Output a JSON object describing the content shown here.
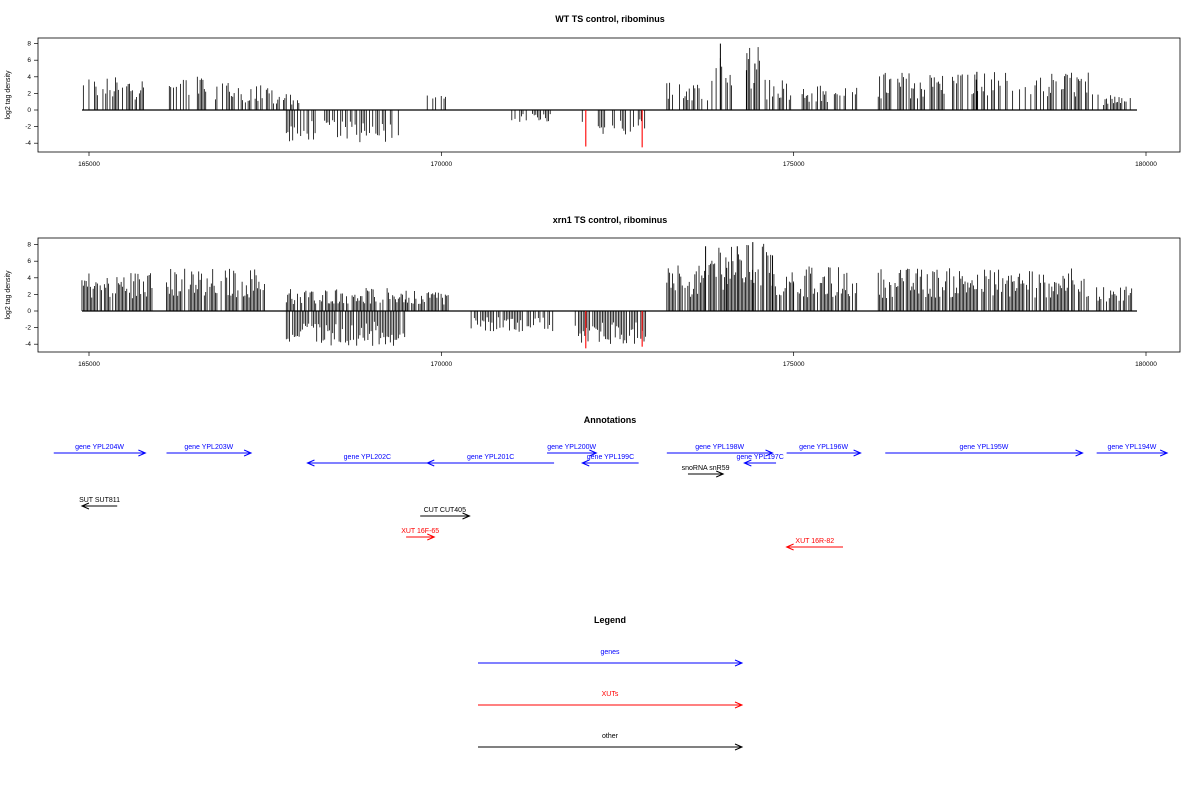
{
  "chart_data": [
    {
      "type": "bar",
      "title": "WT TS control, ribominus",
      "xlabel": "",
      "ylabel": "log2 tag density",
      "xlim": [
        164800,
        179800
      ],
      "ylim": [
        -5,
        9
      ],
      "xticks": [
        165000,
        170000,
        175000,
        180000
      ],
      "yticks": [
        -4,
        -2,
        0,
        2,
        4,
        6,
        8
      ],
      "grid": false,
      "colors": {
        "plus": "#000000",
        "minus": "#000000",
        "highlight": "#ff0000"
      },
      "plus_segments": [
        {
          "start": 164900,
          "end": 165800,
          "max": 4
        },
        {
          "start": 166100,
          "end": 167000,
          "max": 4.2
        },
        {
          "start": 167000,
          "end": 167600,
          "max": 3
        },
        {
          "start": 167600,
          "end": 168000,
          "max": 2
        },
        {
          "start": 169800,
          "end": 170100,
          "max": 1.8
        },
        {
          "start": 173200,
          "end": 173800,
          "max": 3.5
        },
        {
          "start": 173800,
          "end": 174600,
          "max": 8
        },
        {
          "start": 174600,
          "end": 175000,
          "max": 4
        },
        {
          "start": 175100,
          "end": 175900,
          "max": 3
        },
        {
          "start": 176200,
          "end": 179200,
          "max": 4.6
        },
        {
          "start": 179200,
          "end": 179800,
          "max": 2
        }
      ],
      "minus_segments": [
        {
          "start": 167800,
          "end": 169400,
          "min": -4
        },
        {
          "start": 171000,
          "end": 171600,
          "min": -1.5
        },
        {
          "start": 172000,
          "end": 172900,
          "min": -3
        }
      ],
      "highlight_marks": [
        {
          "x": 172050,
          "y": -4.4
        },
        {
          "x": 172850,
          "y": -4.5
        }
      ],
      "peaks": [
        {
          "x": 173960,
          "y": 8
        },
        {
          "x": 174330,
          "y": 4.8
        },
        {
          "x": 174450,
          "y": 5.6
        },
        {
          "x": 177600,
          "y": 4.6
        }
      ]
    },
    {
      "type": "bar",
      "title": "xrn1 TS control, ribominus",
      "xlabel": "",
      "ylabel": "log2 tag density",
      "xlim": [
        164800,
        179800
      ],
      "ylim": [
        -5,
        9
      ],
      "xticks": [
        165000,
        170000,
        175000,
        180000
      ],
      "yticks": [
        -4,
        -2,
        0,
        2,
        4,
        6,
        8
      ],
      "grid": false,
      "colors": {
        "plus": "#000000",
        "minus": "#000000",
        "highlight": "#ff0000"
      },
      "plus_segments": [
        {
          "start": 164900,
          "end": 165900,
          "max": 4.8
        },
        {
          "start": 166100,
          "end": 167500,
          "max": 5.2
        },
        {
          "start": 167800,
          "end": 169500,
          "max": 2.8
        },
        {
          "start": 169500,
          "end": 170100,
          "max": 2.5
        },
        {
          "start": 173200,
          "end": 173800,
          "max": 5.5
        },
        {
          "start": 173800,
          "end": 174700,
          "max": 8.2
        },
        {
          "start": 174700,
          "end": 175000,
          "max": 5
        },
        {
          "start": 175000,
          "end": 175900,
          "max": 5.4
        },
        {
          "start": 176200,
          "end": 179200,
          "max": 5.2
        },
        {
          "start": 179300,
          "end": 179800,
          "max": 3.2
        }
      ],
      "minus_segments": [
        {
          "start": 167800,
          "end": 169500,
          "min": -4.2
        },
        {
          "start": 170400,
          "end": 171600,
          "min": -2.5
        },
        {
          "start": 171900,
          "end": 172900,
          "min": -4
        }
      ],
      "highlight_marks": [
        {
          "x": 172050,
          "y": -4.5
        },
        {
          "x": 172850,
          "y": -4.3
        }
      ],
      "peaks": [
        {
          "x": 173750,
          "y": 7.8
        },
        {
          "x": 174200,
          "y": 7.8
        },
        {
          "x": 174420,
          "y": 8.3
        },
        {
          "x": 174700,
          "y": 6.7
        },
        {
          "x": 174050,
          "y": 5.2
        }
      ]
    }
  ],
  "annotations": {
    "title": "Annotations",
    "xlim": [
      164800,
      179800
    ],
    "features": [
      {
        "label": "gene YPL204W",
        "start": 164500,
        "end": 165800,
        "strand": "+",
        "color": "#0000ff",
        "row": 1
      },
      {
        "label": "gene YPL203W",
        "start": 166100,
        "end": 167300,
        "strand": "+",
        "color": "#0000ff",
        "row": 1
      },
      {
        "label": "gene YPL202C",
        "start": 168100,
        "end": 169800,
        "strand": "-",
        "color": "#0000ff",
        "row": 2
      },
      {
        "label": "gene YPL201C",
        "start": 169800,
        "end": 171600,
        "strand": "-",
        "color": "#0000ff",
        "row": 2
      },
      {
        "label": "gene YPL200W",
        "start": 171500,
        "end": 172200,
        "strand": "+",
        "color": "#0000ff",
        "row": 1
      },
      {
        "label": "gene YPL199C",
        "start": 172000,
        "end": 172800,
        "strand": "-",
        "color": "#0000ff",
        "row": 2
      },
      {
        "label": "gene YPL198W",
        "start": 173200,
        "end": 174700,
        "strand": "+",
        "color": "#0000ff",
        "row": 1
      },
      {
        "label": "gene YPL197C",
        "start": 174300,
        "end": 174750,
        "strand": "-",
        "color": "#0000ff",
        "row": 2
      },
      {
        "label": "gene YPL196W",
        "start": 174900,
        "end": 175950,
        "strand": "+",
        "color": "#0000ff",
        "row": 1
      },
      {
        "label": "gene YPL195W",
        "start": 176300,
        "end": 179100,
        "strand": "+",
        "color": "#0000ff",
        "row": 1
      },
      {
        "label": "gene YPL194W",
        "start": 179300,
        "end": 180300,
        "strand": "+",
        "color": "#0000ff",
        "row": 1
      },
      {
        "label": "snoRNA snR59",
        "start": 173500,
        "end": 174000,
        "strand": "+",
        "color": "#000000",
        "row": 3
      },
      {
        "label": "SUT SUT811",
        "start": 164900,
        "end": 165400,
        "strand": "-",
        "color": "#000000",
        "row": 4
      },
      {
        "label": "CUT CUT405",
        "start": 169700,
        "end": 170400,
        "strand": "+",
        "color": "#000000",
        "row": 5
      },
      {
        "label": "XUT 16F-65",
        "start": 169500,
        "end": 169900,
        "strand": "+",
        "color": "#ff0000",
        "row": 6
      },
      {
        "label": "XUT 16R-82",
        "start": 174900,
        "end": 175700,
        "strand": "-",
        "color": "#ff0000",
        "row": 7
      }
    ]
  },
  "legend": {
    "title": "Legend",
    "items": [
      {
        "label": "genes",
        "color": "#0000ff"
      },
      {
        "label": "XUTs",
        "color": "#ff0000"
      },
      {
        "label": "other",
        "color": "#000000"
      }
    ]
  }
}
